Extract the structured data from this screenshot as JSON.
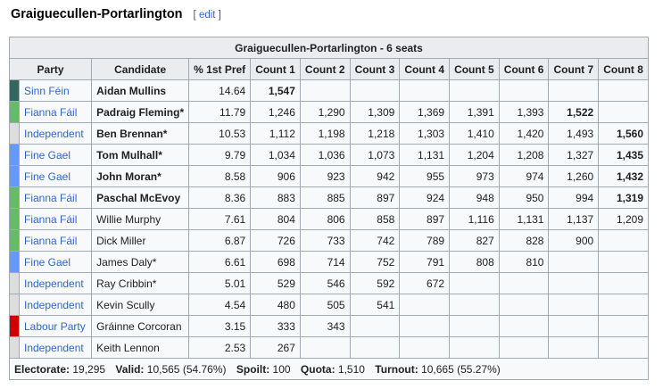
{
  "heading": {
    "title": "Graiguecullen-Portarlington",
    "edit_open": "[ ",
    "edit_label": "edit",
    "edit_close": " ]"
  },
  "table": {
    "title": "Graiguecullen-Portarlington - 6 seats",
    "headers": [
      "Party",
      "Candidate",
      "% 1st Pref",
      "Count 1",
      "Count 2",
      "Count 3",
      "Count 4",
      "Count 5",
      "Count 6",
      "Count 7",
      "Count 8"
    ],
    "party_colors": {
      "Sinn Féin": "#326760",
      "Fianna Fáil": "#66bb66",
      "Independent": "#dddddd",
      "Fine Gael": "#6699ff",
      "Labour Party": "#cc0000"
    },
    "rows": [
      {
        "party": "Sinn Féin",
        "candidate": "Aidan Mullins",
        "elected": true,
        "pref": "14.64",
        "counts": [
          "1,547",
          "",
          "",
          "",
          "",
          "",
          "",
          ""
        ],
        "win_col": 0
      },
      {
        "party": "Fianna Fáil",
        "candidate": "Padraig Fleming*",
        "elected": true,
        "pref": "11.79",
        "counts": [
          "1,246",
          "1,290",
          "1,309",
          "1,369",
          "1,391",
          "1,393",
          "1,522",
          ""
        ],
        "win_col": 6
      },
      {
        "party": "Independent",
        "candidate": "Ben Brennan*",
        "elected": true,
        "pref": "10.53",
        "counts": [
          "1,112",
          "1,198",
          "1,218",
          "1,303",
          "1,410",
          "1,420",
          "1,493",
          "1,560"
        ],
        "win_col": 7
      },
      {
        "party": "Fine Gael",
        "candidate": "Tom Mulhall*",
        "elected": true,
        "pref": "9.79",
        "counts": [
          "1,034",
          "1,036",
          "1,073",
          "1,131",
          "1,204",
          "1,208",
          "1,327",
          "1,435"
        ],
        "win_col": 7
      },
      {
        "party": "Fine Gael",
        "candidate": "John Moran*",
        "elected": true,
        "pref": "8.58",
        "counts": [
          "906",
          "923",
          "942",
          "955",
          "973",
          "974",
          "1,260",
          "1,432"
        ],
        "win_col": 7
      },
      {
        "party": "Fianna Fáil",
        "candidate": "Paschal McEvoy",
        "elected": true,
        "pref": "8.36",
        "counts": [
          "883",
          "885",
          "897",
          "924",
          "948",
          "950",
          "994",
          "1,319"
        ],
        "win_col": 7
      },
      {
        "party": "Fianna Fáil",
        "candidate": "Willie Murphy",
        "elected": false,
        "pref": "7.61",
        "counts": [
          "804",
          "806",
          "858",
          "897",
          "1,116",
          "1,131",
          "1,137",
          "1,209"
        ],
        "win_col": -1
      },
      {
        "party": "Fianna Fáil",
        "candidate": "Dick Miller",
        "elected": false,
        "pref": "6.87",
        "counts": [
          "726",
          "733",
          "742",
          "789",
          "827",
          "828",
          "900",
          ""
        ],
        "win_col": -1
      },
      {
        "party": "Fine Gael",
        "candidate": "James Daly*",
        "elected": false,
        "pref": "6.61",
        "counts": [
          "698",
          "714",
          "752",
          "791",
          "808",
          "810",
          "",
          ""
        ],
        "win_col": -1
      },
      {
        "party": "Independent",
        "candidate": "Ray Cribbin*",
        "elected": false,
        "pref": "5.01",
        "counts": [
          "529",
          "546",
          "592",
          "672",
          "",
          "",
          "",
          ""
        ],
        "win_col": -1
      },
      {
        "party": "Independent",
        "candidate": "Kevin Scully",
        "elected": false,
        "pref": "4.54",
        "counts": [
          "480",
          "505",
          "541",
          "",
          "",
          "",
          "",
          ""
        ],
        "win_col": -1
      },
      {
        "party": "Labour Party",
        "candidate": "Gráinne Corcoran",
        "elected": false,
        "pref": "3.15",
        "counts": [
          "333",
          "343",
          "",
          "",
          "",
          "",
          "",
          ""
        ],
        "win_col": -1
      },
      {
        "party": "Independent",
        "candidate": "Keith Lennon",
        "elected": false,
        "pref": "2.53",
        "counts": [
          "267",
          "",
          "",
          "",
          "",
          "",
          "",
          ""
        ],
        "win_col": -1
      }
    ],
    "footer": {
      "electorate_label": "Electorate:",
      "electorate": "19,295",
      "valid_label": "Valid:",
      "valid": "10,565 (54.76%)",
      "spoilt_label": "Spoilt:",
      "spoilt": "100",
      "quota_label": "Quota:",
      "quota": "1,510",
      "turnout_label": "Turnout:",
      "turnout": "10,665 (55.27%)"
    }
  }
}
